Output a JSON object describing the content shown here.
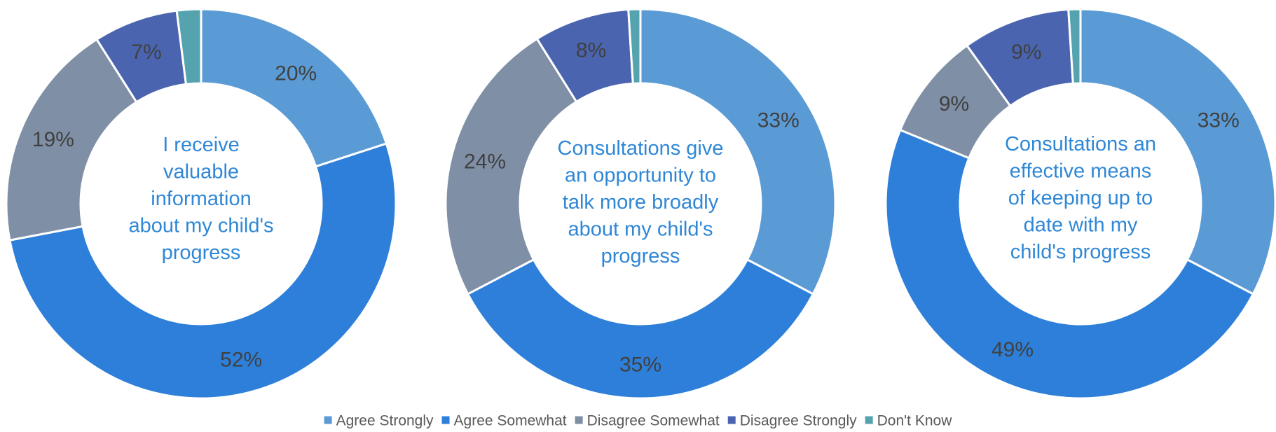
{
  "chart_data": [
    {
      "type": "pie",
      "title_lines": [
        "I receive",
        "valuable",
        "information",
        "about my child's",
        "progress"
      ],
      "categories": [
        "Agree Strongly",
        "Agree Somewhat",
        "Disagree Somewhat",
        "Disagree Strongly",
        "Don't Know"
      ],
      "values": [
        20,
        52,
        19,
        7,
        2
      ],
      "labels": [
        "20%",
        "52%",
        "19%",
        "7%",
        ""
      ]
    },
    {
      "type": "pie",
      "title_lines": [
        "Consultations give",
        "an opportunity to",
        "talk more broadly",
        "about my child's",
        "progress"
      ],
      "categories": [
        "Agree Strongly",
        "Agree Somewhat",
        "Disagree Somewhat",
        "Disagree Strongly",
        "Don't Know"
      ],
      "values": [
        33,
        35,
        24,
        8,
        1
      ],
      "labels": [
        "33%",
        "35%",
        "24%",
        "8%",
        ""
      ]
    },
    {
      "type": "pie",
      "title_lines": [
        "Consultations an",
        "effective means",
        "of keeping up to",
        "date with my",
        "child's progress"
      ],
      "categories": [
        "Agree Strongly",
        "Agree Somewhat",
        "Disagree Somewhat",
        "Disagree Strongly",
        "Don't Know"
      ],
      "values": [
        33,
        49,
        9,
        9,
        1
      ],
      "labels": [
        "33%",
        "49%",
        "9%",
        "9%",
        ""
      ]
    }
  ],
  "legend": {
    "placement": "bottom",
    "items": [
      {
        "label": "Agree Strongly",
        "color": "#5b9bd5"
      },
      {
        "label": "Agree Somewhat",
        "color": "#2e7fd9"
      },
      {
        "label": "Disagree Somewhat",
        "color": "#7f8fa6"
      },
      {
        "label": "Disagree Strongly",
        "color": "#4a64b0"
      },
      {
        "label": "Don't Know",
        "color": "#56a3b0"
      }
    ]
  },
  "colors": {
    "segments": [
      "#5b9bd5",
      "#2e7fd9",
      "#7f8fa6",
      "#4a64b0",
      "#56a3b0"
    ],
    "center_text": "#2f87d6",
    "label_text": "#404040",
    "legend_text": "#595959"
  }
}
